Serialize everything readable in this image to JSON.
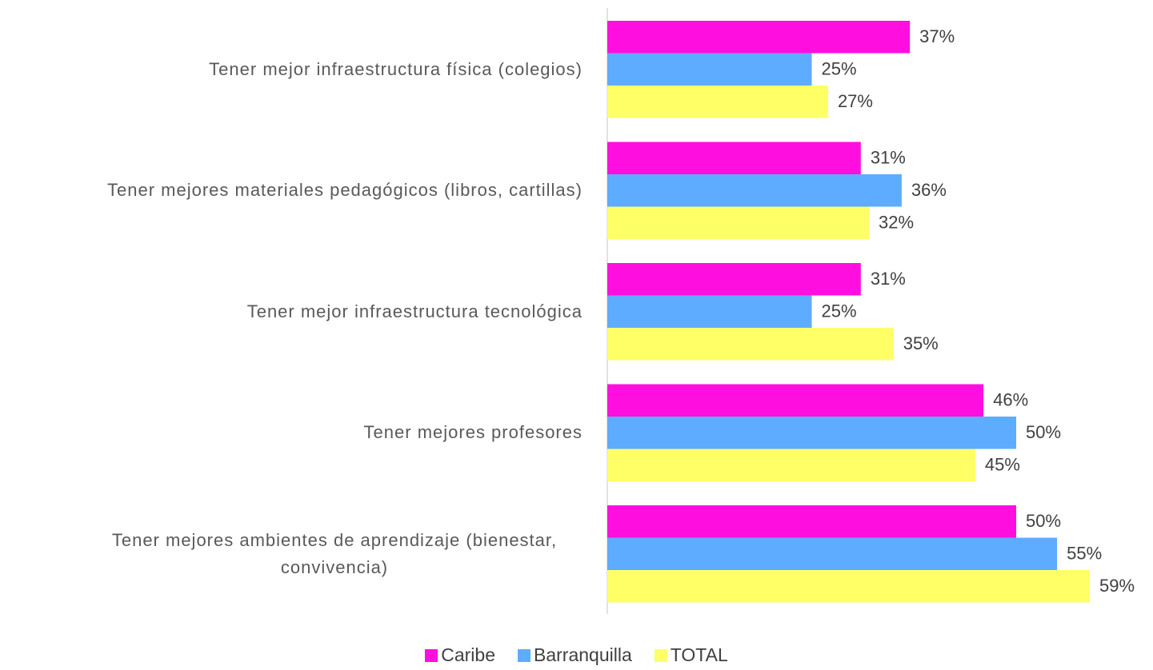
{
  "chart_data": {
    "type": "bar",
    "orientation": "horizontal",
    "categories": [
      "Tener mejor infraestructura física (colegios)",
      "Tener mejores materiales pedagógicos (libros, cartillas)",
      "Tener mejor infraestructura tecnológica",
      "Tener mejores profesores",
      "Tener mejores ambientes de aprendizaje (bienestar, convivencia)"
    ],
    "series": [
      {
        "name": "Caribe",
        "color": "#ff0fdf",
        "values": [
          37,
          31,
          31,
          46,
          50
        ],
        "value_labels": [
          "37%",
          "31%",
          "31%",
          "46%",
          "50%"
        ]
      },
      {
        "name": "Barranquilla",
        "color": "#5eacff",
        "values": [
          25,
          36,
          25,
          50,
          55
        ],
        "value_labels": [
          "25%",
          "36%",
          "25%",
          "50%",
          "55%"
        ]
      },
      {
        "name": "TOTAL",
        "color": "#ffff66",
        "values": [
          27,
          32,
          35,
          45,
          59
        ],
        "value_labels": [
          "27%",
          "32%",
          "35%",
          "45%",
          "59%"
        ]
      }
    ],
    "legend": "bottom"
  }
}
